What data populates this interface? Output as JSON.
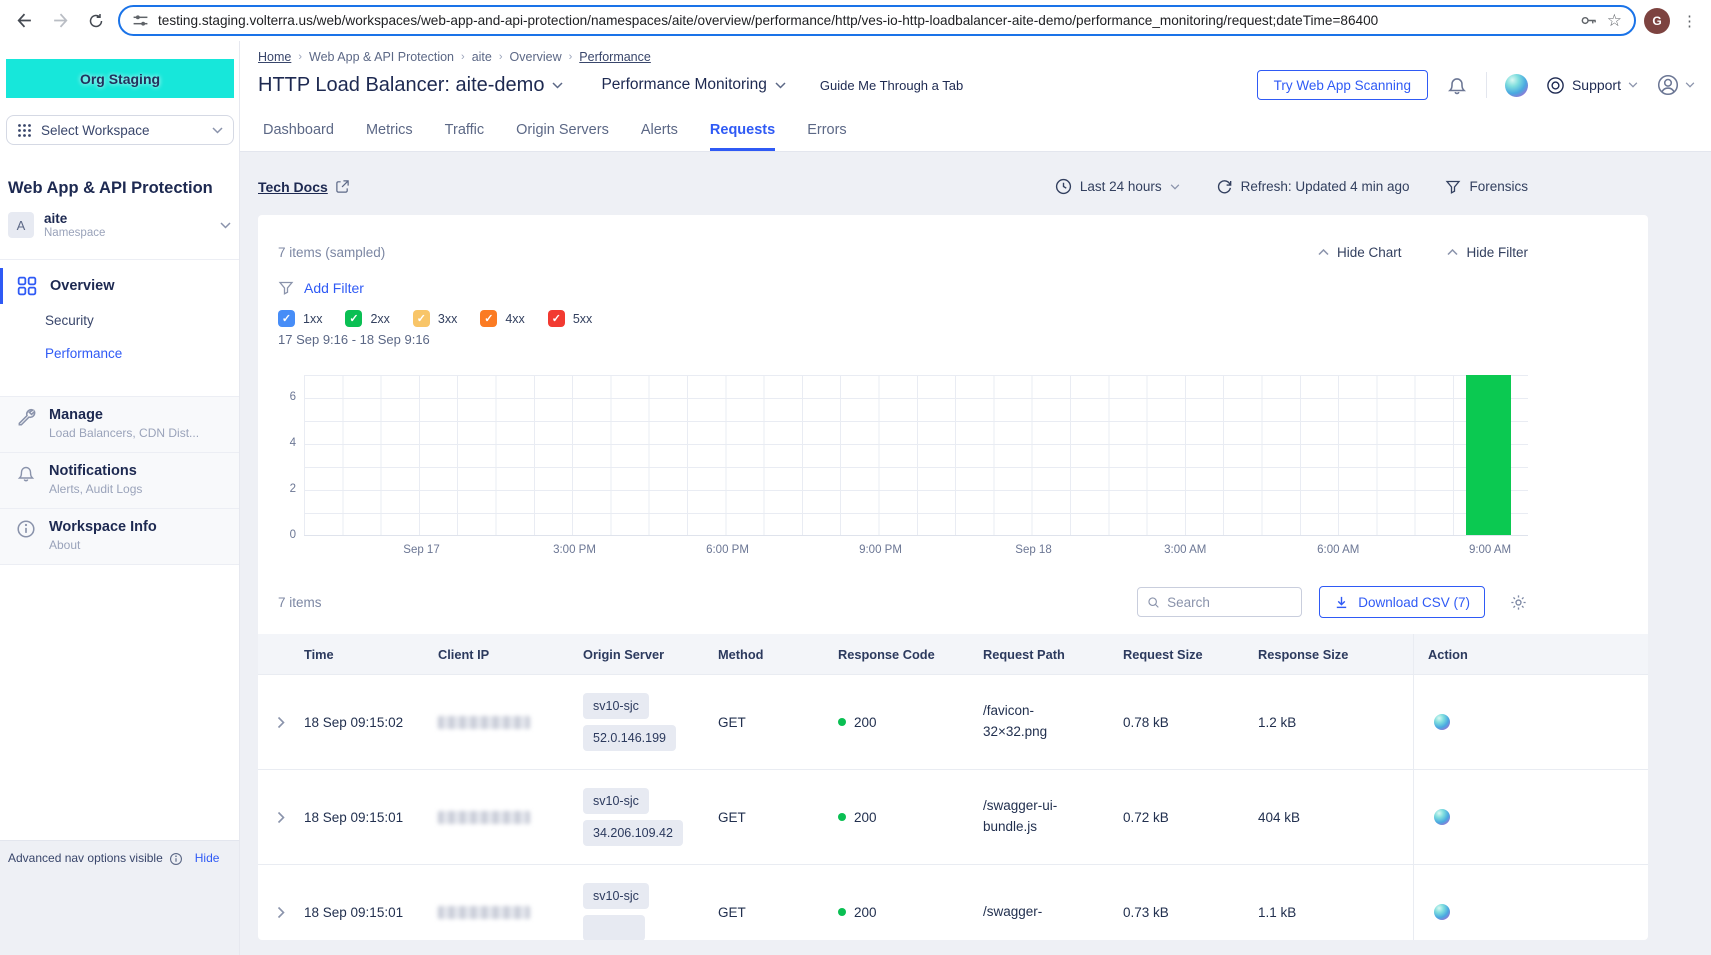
{
  "browser": {
    "url": "testing.staging.volterra.us/web/workspaces/web-app-and-api-protection/namespaces/aite/overview/performance/http/ves-io-http-loadbalancer-aite-demo/performance_monitoring/request;dateTime=86400",
    "profile_initial": "G"
  },
  "sidebar": {
    "org_banner": "Org Staging",
    "workspace_selector": "Select Workspace",
    "section_title": "Web App & API Protection",
    "namespace": {
      "initial": "A",
      "name": "aite",
      "sublabel": "Namespace"
    },
    "nav": {
      "overview": "Overview",
      "security": "Security",
      "performance": "Performance"
    },
    "groups": [
      {
        "title": "Manage",
        "subtitle": "Load Balancers, CDN Dist..."
      },
      {
        "title": "Notifications",
        "subtitle": "Alerts, Audit Logs"
      },
      {
        "title": "Workspace Info",
        "subtitle": "About"
      }
    ],
    "footer": {
      "text": "Advanced nav options visible",
      "action": "Hide"
    }
  },
  "header": {
    "breadcrumb": [
      "Home",
      "Web App & API Protection",
      "aite",
      "Overview",
      "Performance"
    ],
    "title": "HTTP Load Balancer: aite-demo",
    "subnav": "Performance Monitoring",
    "guide": "Guide Me Through a Tab",
    "try_button": "Try Web App Scanning",
    "support": "Support"
  },
  "tabs": {
    "t0": "Dashboard",
    "t1": "Metrics",
    "t2": "Traffic",
    "t3": "Origin Servers",
    "t4": "Alerts",
    "t5": "Requests",
    "t6": "Errors",
    "active": "Requests"
  },
  "toolbar": {
    "tech_docs": "Tech Docs",
    "time_range": "Last 24 hours",
    "refresh": "Refresh: Updated 4 min ago",
    "forensics": "Forensics"
  },
  "panel": {
    "items_sampled": "7 items (sampled)",
    "hide_chart": "Hide Chart",
    "hide_filter": "Hide Filter",
    "add_filter": "Add Filter",
    "date_range": "17 Sep 9:16 - 18 Sep 9:16",
    "status_filters": [
      {
        "label": "1xx",
        "color": "#478df7",
        "checked": true
      },
      {
        "label": "2xx",
        "color": "#0abf53",
        "checked": true
      },
      {
        "label": "3xx",
        "color": "#f8c568",
        "checked": true
      },
      {
        "label": "4xx",
        "color": "#fb7b23",
        "checked": true
      },
      {
        "label": "5xx",
        "color": "#f23a31",
        "checked": true
      }
    ]
  },
  "chart_data": {
    "type": "bar",
    "title": "",
    "xlabel": "",
    "ylabel": "",
    "time_window": "17 Sep 9:16 - 18 Sep 9:16",
    "x_ticks": [
      "Sep 17",
      "3:00 PM",
      "6:00 PM",
      "9:00 PM",
      "Sep 18",
      "3:00 AM",
      "6:00 AM",
      "9:00 AM"
    ],
    "y_ticks": [
      6,
      4,
      2,
      0
    ],
    "ylim": [
      0,
      7
    ],
    "grid": true,
    "legend": "none",
    "series": [
      {
        "name": "2xx",
        "color": "#0bc951",
        "points": [
          {
            "x": "18 Sep 9:00 AM",
            "y": 7
          }
        ]
      }
    ]
  },
  "table": {
    "items_label": "7 items",
    "search_placeholder": "Search",
    "download_label": "Download CSV (7)",
    "columns": {
      "c0": "Time",
      "c1": "Client IP",
      "c2": "Origin Server",
      "c3": "Method",
      "c4": "Response Code",
      "c5": "Request Path",
      "c6": "Request Size",
      "c7": "Response Size",
      "c8": "Action"
    },
    "rows": [
      {
        "time": "18 Sep 09:15:02",
        "client_ip": "",
        "client_ip_redacted": true,
        "origin_site": "sv10-sjc",
        "origin_ip": "52.0.146.199",
        "method": "GET",
        "response_code": "200",
        "request_path": "/favicon-32×32.png",
        "request_size": "0.78 kB",
        "response_size": "1.2 kB"
      },
      {
        "time": "18 Sep 09:15:01",
        "client_ip": "",
        "client_ip_redacted": true,
        "origin_site": "sv10-sjc",
        "origin_ip": "34.206.109.42",
        "method": "GET",
        "response_code": "200",
        "request_path": "/swagger-ui-bundle.js",
        "request_size": "0.72 kB",
        "response_size": "404 kB"
      },
      {
        "time": "18 Sep 09:15:01",
        "client_ip": "",
        "client_ip_redacted": true,
        "origin_site": "sv10-sjc",
        "origin_ip": "",
        "method": "GET",
        "response_code": "200",
        "request_path": "/swagger-",
        "request_size": "0.73 kB",
        "response_size": "1.1 kB"
      }
    ]
  }
}
